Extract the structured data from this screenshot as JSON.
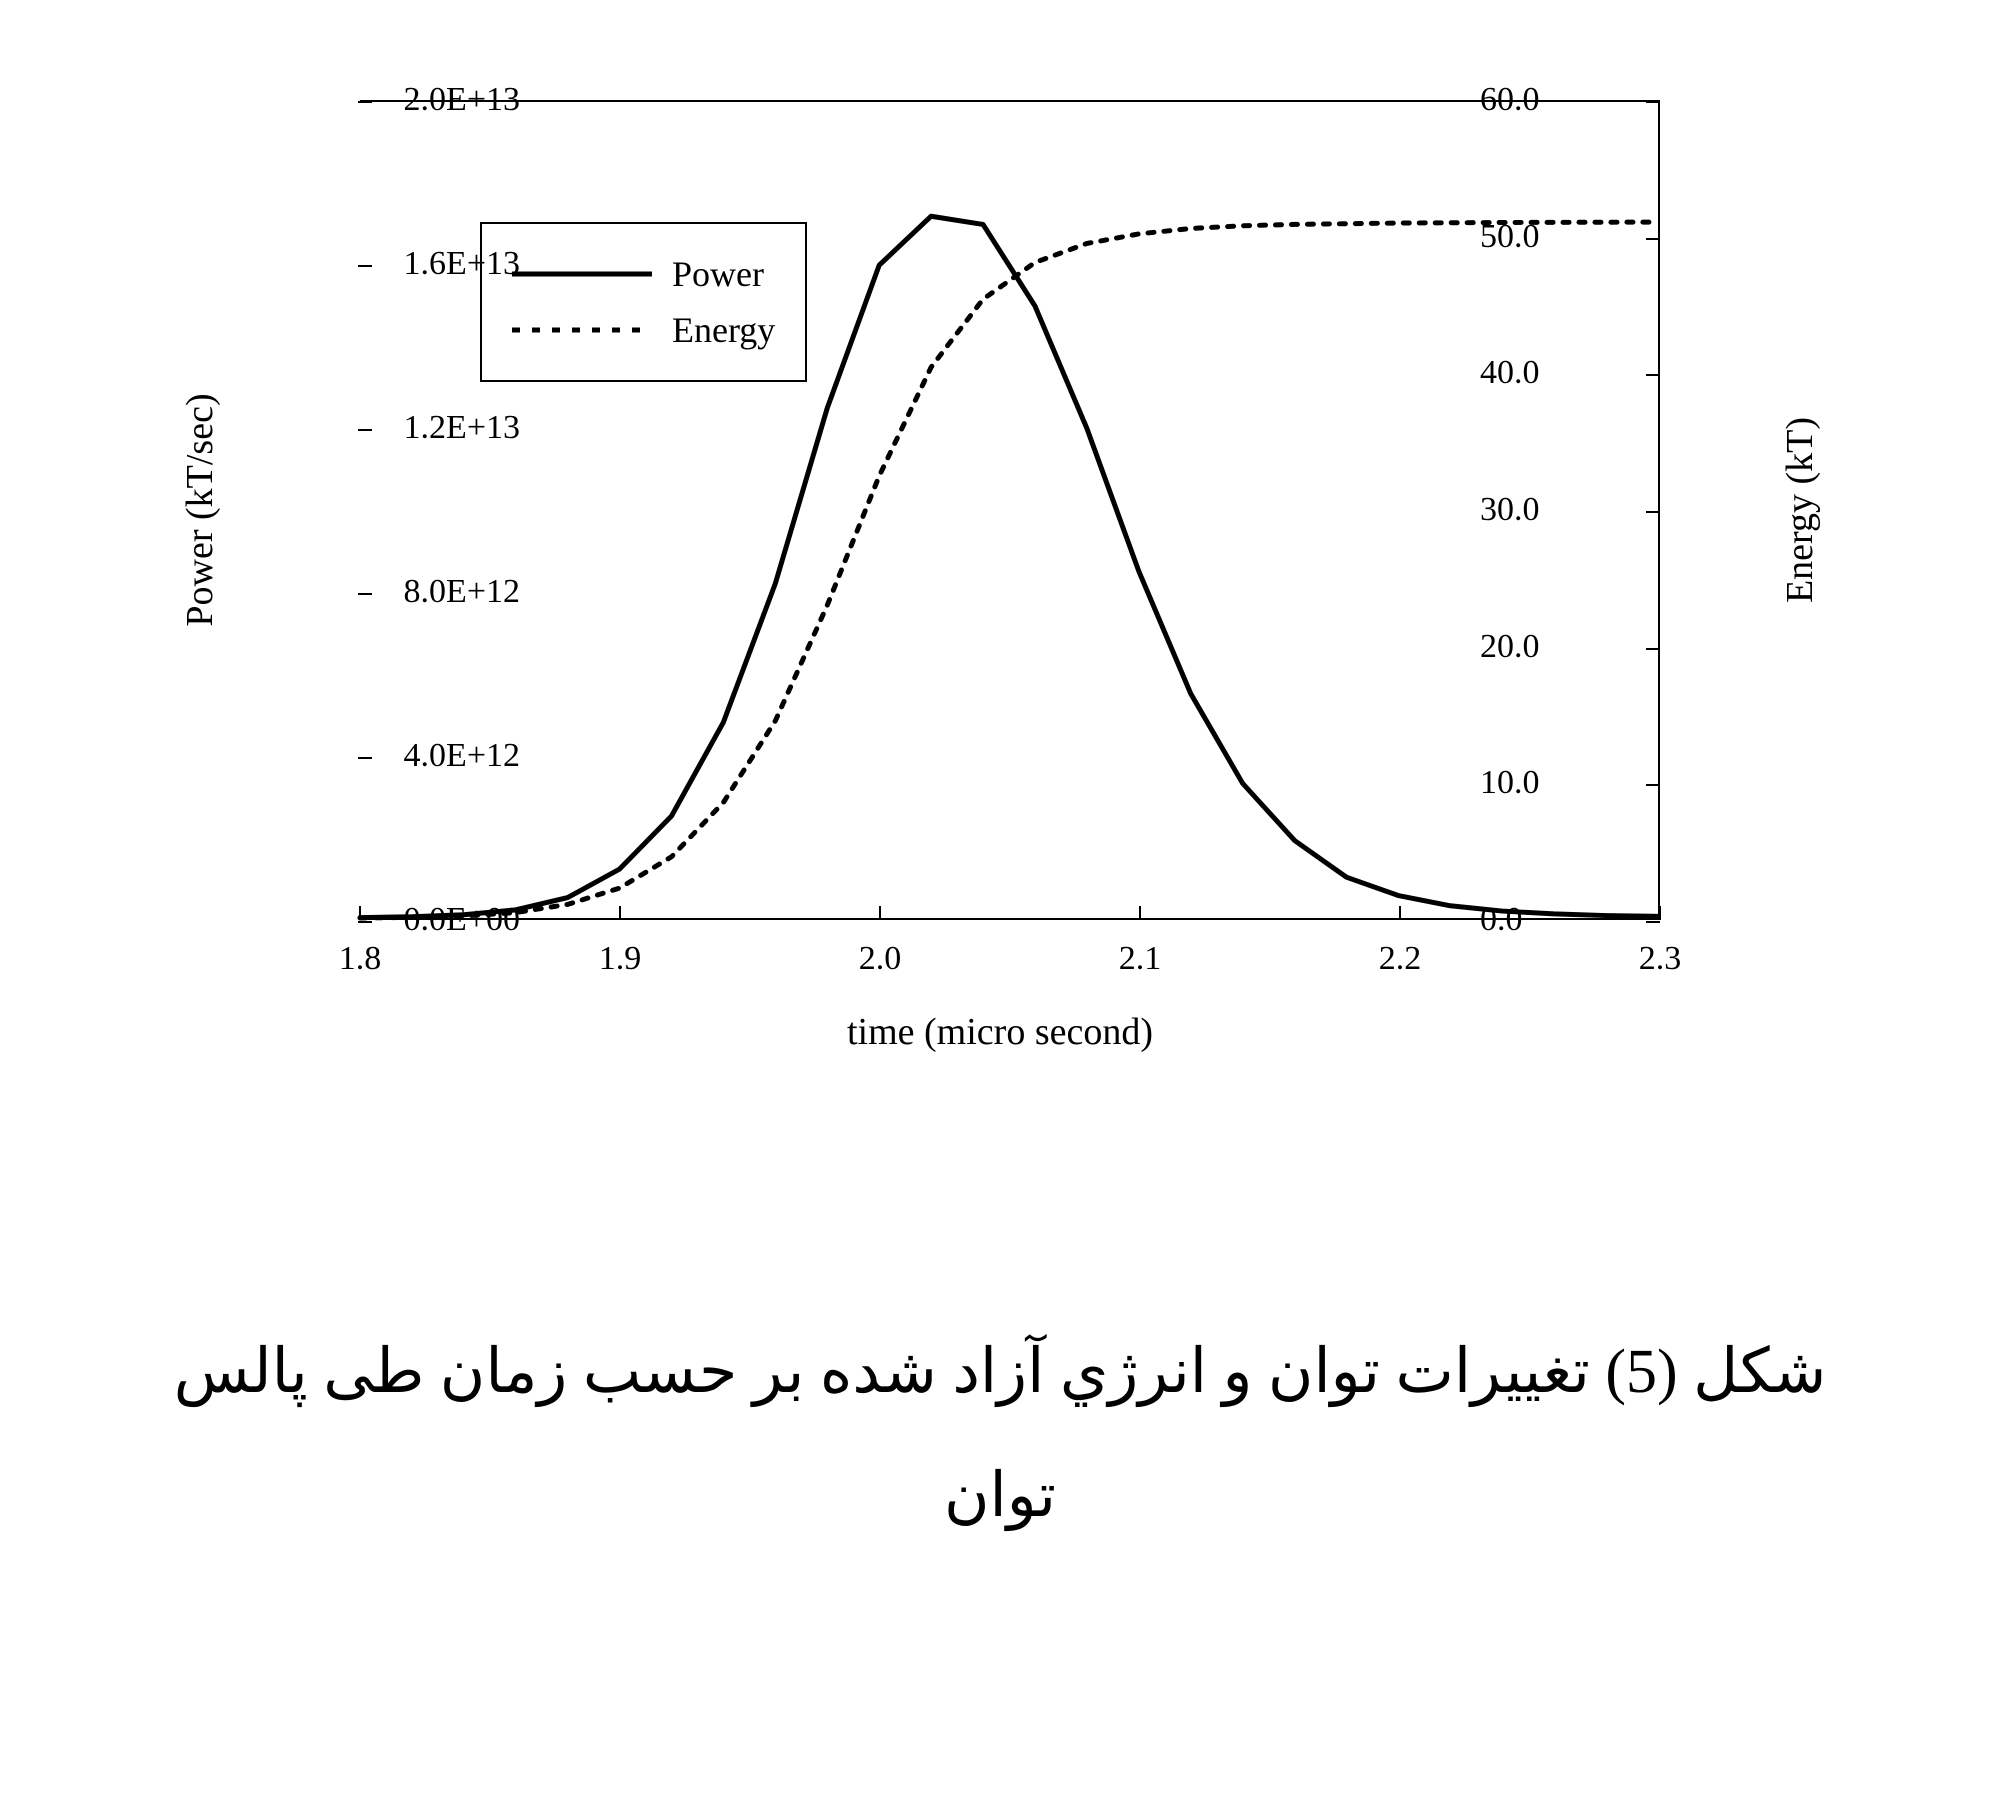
{
  "chart": {
    "type": "line-dual-axis",
    "background_color": "#ffffff",
    "border_color": "#000000",
    "x": {
      "label": "time (micro second)",
      "min": 1.8,
      "max": 2.3,
      "ticks": [
        1.8,
        1.9,
        2.0,
        2.1,
        2.2,
        2.3
      ],
      "tick_labels": [
        "1.8",
        "1.9",
        "2.0",
        "2.1",
        "2.2",
        "2.3"
      ],
      "label_fontsize": 38,
      "tick_fontsize": 34
    },
    "y_left": {
      "label": "Power (kT/sec)",
      "min": 0,
      "max": 20000000000000.0,
      "ticks": [
        0,
        4000000000000.0,
        8000000000000.0,
        12000000000000.0,
        16000000000000.0,
        20000000000000.0
      ],
      "tick_labels": [
        "0.0E+00",
        "4.0E+12",
        "8.0E+12",
        "1.2E+13",
        "1.6E+13",
        "2.0E+13"
      ],
      "label_fontsize": 38,
      "tick_fontsize": 34
    },
    "y_right": {
      "label": "Energy (kT)",
      "min": 0,
      "max": 60,
      "ticks": [
        0,
        10,
        20,
        30,
        40,
        50,
        60
      ],
      "tick_labels": [
        "0.0",
        "10.0",
        "20.0",
        "30.0",
        "40.0",
        "50.0",
        "60.0"
      ],
      "label_fontsize": 38,
      "tick_fontsize": 34
    },
    "series": {
      "power": {
        "label": "Power",
        "axis": "left",
        "color": "#000000",
        "line_width": 5,
        "dash": "solid",
        "x": [
          1.8,
          1.82,
          1.84,
          1.86,
          1.88,
          1.9,
          1.92,
          1.94,
          1.96,
          1.98,
          2.0,
          2.02,
          2.04,
          2.06,
          2.08,
          2.1,
          2.12,
          2.14,
          2.16,
          2.18,
          2.2,
          2.22,
          2.24,
          2.26,
          2.28,
          2.3
        ],
        "y": [
          10000000000.0,
          30000000000.0,
          80000000000.0,
          200000000000.0,
          500000000000.0,
          1200000000000.0,
          2500000000000.0,
          4800000000000.0,
          8200000000000.0,
          12500000000000.0,
          16000000000000.0,
          17200000000000.0,
          17000000000000.0,
          15000000000000.0,
          12000000000000.0,
          8500000000000.0,
          5500000000000.0,
          3300000000000.0,
          1900000000000.0,
          1000000000000.0,
          550000000000.0,
          300000000000.0,
          170000000000.0,
          100000000000.0,
          60000000000.0,
          40000000000.0
        ]
      },
      "energy": {
        "label": "Energy",
        "axis": "right",
        "color": "#000000",
        "line_width": 5,
        "dash": "6 10",
        "x": [
          1.8,
          1.82,
          1.84,
          1.86,
          1.88,
          1.9,
          1.92,
          1.94,
          1.96,
          1.98,
          2.0,
          2.02,
          2.04,
          2.06,
          2.08,
          2.1,
          2.12,
          2.14,
          2.16,
          2.18,
          2.2,
          2.22,
          2.24,
          2.26,
          2.28,
          2.3
        ],
        "y": [
          0.0,
          0.05,
          0.15,
          0.4,
          1.0,
          2.2,
          4.5,
          8.5,
          14.5,
          23.0,
          32.5,
          40.5,
          45.5,
          48.2,
          49.6,
          50.3,
          50.7,
          50.9,
          51.0,
          51.05,
          51.1,
          51.12,
          51.14,
          51.15,
          51.16,
          51.17
        ]
      }
    },
    "legend": {
      "position": "upper-left",
      "border_color": "#000000",
      "items": [
        "power",
        "energy"
      ]
    }
  },
  "caption": {
    "text": "شكل (5) تغييرات توان و انرژي آزاد شده بر حسب زمان طى پالس توان",
    "fontsize": 62,
    "direction": "rtl"
  }
}
